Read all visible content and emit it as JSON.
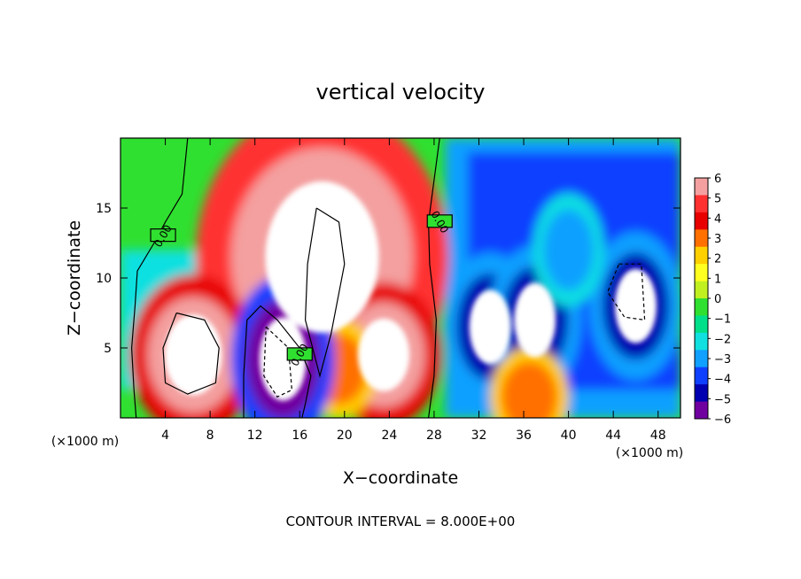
{
  "chart_data": {
    "type": "heatmap",
    "title": "vertical velocity",
    "xlabel": "X−coordinate",
    "ylabel": "Z−coordinate",
    "x_unit_left": "(×1000 m)",
    "x_unit_right": "(×1000 m)",
    "x_ticks": [
      "4",
      "8",
      "12",
      "16",
      "20",
      "24",
      "28",
      "32",
      "36",
      "40",
      "44",
      "48"
    ],
    "y_ticks": [
      "5",
      "10",
      "15"
    ],
    "xlim": [
      0,
      50
    ],
    "ylim": [
      0,
      20
    ],
    "colorbar": {
      "labels": [
        "6",
        "5",
        "4",
        "3",
        "2",
        "1",
        "0",
        "−1",
        "−2",
        "−3",
        "−4",
        "−5",
        "−6"
      ],
      "range": [
        -6,
        6
      ],
      "colors": [
        "#f4a0a0",
        "#ff3030",
        "#e80000",
        "#ff7000",
        "#ffd000",
        "#ffff20",
        "#c0f020",
        "#30e030",
        "#00e08a",
        "#10e0e0",
        "#10a0ff",
        "#1040ff",
        "#0000b0",
        "#7000a0"
      ]
    },
    "contour_labels": [
      "0.00",
      "0.00",
      "0.00"
    ],
    "footnote": "CONTOUR INTERVAL = 8.000E+00",
    "features": [
      {
        "kind": "updraft",
        "x": 18,
        "z": 11.5,
        "w": 9
      },
      {
        "kind": "updraft",
        "x": 6.5,
        "z": 4.5,
        "w": 8
      },
      {
        "kind": "updraft",
        "x": 23.5,
        "z": 4.5,
        "w": 7
      },
      {
        "kind": "updraft",
        "x": 19.5,
        "z": 3.5,
        "w": 4
      },
      {
        "kind": "downdraft",
        "x": 14.5,
        "z": 4.2,
        "w": -7
      },
      {
        "kind": "downdraft",
        "x": 33,
        "z": 6.5,
        "w": -6
      },
      {
        "kind": "downdraft",
        "x": 37,
        "z": 7,
        "w": -6
      },
      {
        "kind": "downdraft",
        "x": 46,
        "z": 8,
        "w": -6
      },
      {
        "kind": "downdraft",
        "x": 40,
        "z": 12,
        "w": -4
      },
      {
        "kind": "updraft",
        "x": 36.5,
        "z": 1.5,
        "w": 4
      }
    ]
  }
}
